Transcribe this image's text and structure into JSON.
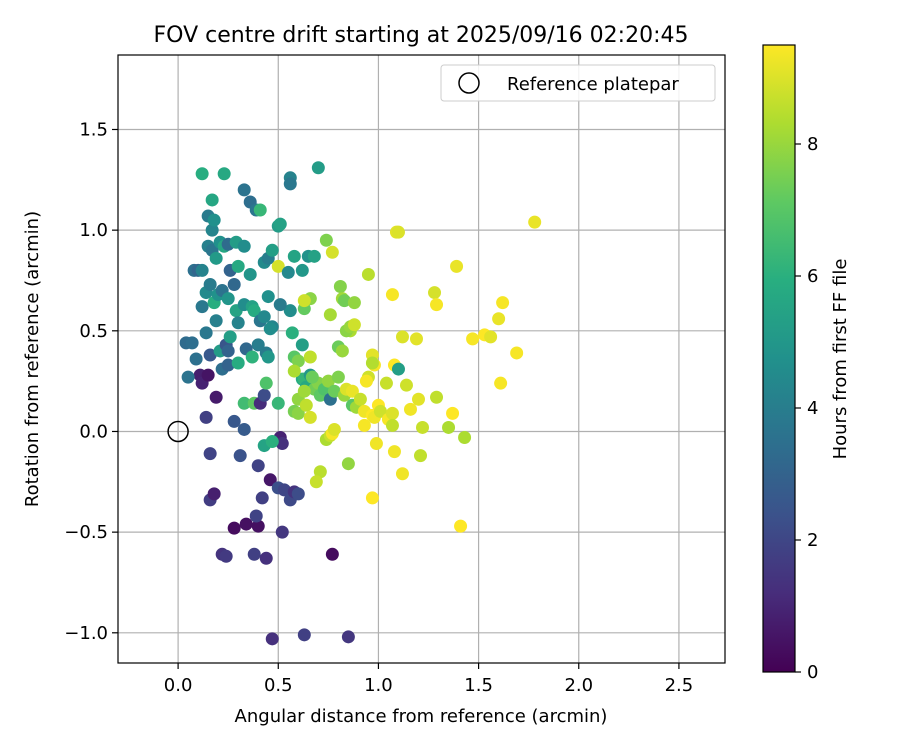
{
  "chart_data": {
    "type": "scatter",
    "title": "FOV centre drift starting at 2025/09/16 02:20:45",
    "xlabel": "Angular distance from reference (arcmin)",
    "ylabel": "Rotation from reference (arcmin)",
    "xlim": [
      -0.3,
      2.73
    ],
    "ylim": [
      -1.15,
      1.87
    ],
    "x_ticks": [
      0.0,
      0.5,
      1.0,
      1.5,
      2.0,
      2.5
    ],
    "x_tick_labels": [
      "0.0",
      "0.5",
      "1.0",
      "1.5",
      "2.0",
      "2.5"
    ],
    "y_ticks": [
      -1.0,
      -0.5,
      0.0,
      0.5,
      1.0,
      1.5
    ],
    "y_tick_labels": [
      "−1.0",
      "−0.5",
      "0.0",
      "0.5",
      "1.0",
      "1.5"
    ],
    "grid": true,
    "legend": {
      "placement": "top-right",
      "entries": [
        "Reference platepar"
      ]
    },
    "reference_point": {
      "x": 0.0,
      "y": 0.0,
      "label": "Reference platepar"
    },
    "colorbar": {
      "label": "Hours from first FF file",
      "min": 0,
      "max": 9.5,
      "ticks": [
        0,
        2,
        4,
        6,
        8
      ],
      "tick_labels": [
        "0",
        "2",
        "4",
        "6",
        "8"
      ]
    },
    "points": [
      [
        0.11,
        0.28,
        0.8
      ],
      [
        0.12,
        0.24,
        0.9
      ],
      [
        0.15,
        0.28,
        0.5
      ],
      [
        0.19,
        0.17,
        0.7
      ],
      [
        0.14,
        0.07,
        1.8
      ],
      [
        0.16,
        -0.11,
        1.9
      ],
      [
        0.16,
        -0.34,
        1.7
      ],
      [
        0.18,
        -0.31,
        0.8
      ],
      [
        0.22,
        -0.61,
        1.4
      ],
      [
        0.24,
        -0.62,
        1.6
      ],
      [
        0.28,
        -0.48,
        0.3
      ],
      [
        0.34,
        -0.46,
        0.4
      ],
      [
        0.38,
        -0.61,
        1.8
      ],
      [
        0.4,
        -0.47,
        0.4
      ],
      [
        0.44,
        -0.63,
        1.3
      ],
      [
        0.39,
        -0.42,
        1.9
      ],
      [
        0.4,
        -0.17,
        1.9
      ],
      [
        0.42,
        -0.33,
        1.8
      ],
      [
        0.46,
        -0.24,
        0.6
      ],
      [
        0.5,
        -0.28,
        2.3
      ],
      [
        0.52,
        -0.5,
        1.5
      ],
      [
        0.53,
        -0.29,
        2.0
      ],
      [
        0.56,
        -0.34,
        2.1
      ],
      [
        0.58,
        -0.3,
        1.4
      ],
      [
        0.6,
        -0.31,
        2.2
      ],
      [
        0.63,
        -1.01,
        1.8
      ],
      [
        0.85,
        -1.02,
        1.5
      ],
      [
        0.47,
        -1.03,
        1.3
      ],
      [
        0.77,
        -0.61,
        0.3
      ],
      [
        0.31,
        -0.12,
        2.4
      ],
      [
        0.28,
        0.05,
        2.6
      ],
      [
        0.33,
        0.01,
        2.7
      ],
      [
        0.51,
        -0.03,
        0.9
      ],
      [
        0.52,
        -0.06,
        1.3
      ],
      [
        0.43,
        -0.07,
        5.5
      ],
      [
        0.47,
        -0.05,
        6.0
      ],
      [
        0.22,
        0.31,
        3.4
      ],
      [
        0.25,
        0.33,
        3.0
      ],
      [
        0.3,
        0.34,
        5.8
      ],
      [
        0.33,
        0.14,
        6.5
      ],
      [
        0.38,
        0.14,
        7.1
      ],
      [
        0.41,
        0.14,
        1.2
      ],
      [
        0.43,
        0.18,
        2.2
      ],
      [
        0.44,
        0.24,
        6.8
      ],
      [
        0.5,
        0.14,
        6.3
      ],
      [
        0.05,
        0.27,
        3.6
      ],
      [
        0.09,
        0.36,
        3.5
      ],
      [
        0.04,
        0.44,
        3.3
      ],
      [
        0.07,
        0.44,
        3.4
      ],
      [
        0.14,
        0.49,
        3.8
      ],
      [
        0.16,
        0.38,
        2.6
      ],
      [
        0.19,
        0.55,
        4.1
      ],
      [
        0.21,
        0.4,
        5.2
      ],
      [
        0.24,
        0.43,
        2.5
      ],
      [
        0.25,
        0.4,
        3.0
      ],
      [
        0.26,
        0.47,
        5.3
      ],
      [
        0.29,
        0.6,
        5.5
      ],
      [
        0.3,
        0.54,
        4.2
      ],
      [
        0.33,
        0.63,
        4.6
      ],
      [
        0.34,
        0.41,
        3.2
      ],
      [
        0.37,
        0.37,
        6.1
      ],
      [
        0.37,
        0.62,
        5.4
      ],
      [
        0.38,
        0.6,
        5.8
      ],
      [
        0.4,
        0.43,
        4.0
      ],
      [
        0.41,
        0.55,
        3.7
      ],
      [
        0.43,
        0.57,
        4.4
      ],
      [
        0.44,
        0.39,
        3.9
      ],
      [
        0.45,
        0.37,
        5.0
      ],
      [
        0.47,
        0.52,
        4.3
      ],
      [
        0.45,
        0.67,
        4.7
      ],
      [
        0.12,
        0.62,
        3.8
      ],
      [
        0.14,
        0.69,
        4.5
      ],
      [
        0.16,
        0.73,
        3.9
      ],
      [
        0.18,
        0.64,
        5.9
      ],
      [
        0.2,
        0.68,
        4.8
      ],
      [
        0.22,
        0.7,
        3.6
      ],
      [
        0.25,
        0.66,
        4.9
      ],
      [
        0.28,
        0.73,
        3.2
      ],
      [
        0.08,
        0.8,
        3.5
      ],
      [
        0.1,
        0.8,
        3.1
      ],
      [
        0.12,
        0.8,
        4.2
      ],
      [
        0.15,
        0.92,
        4.1
      ],
      [
        0.17,
        0.9,
        3.7
      ],
      [
        0.19,
        0.86,
        5.1
      ],
      [
        0.21,
        0.94,
        4.7
      ],
      [
        0.23,
        0.92,
        5.6
      ],
      [
        0.25,
        0.93,
        3.3
      ],
      [
        0.26,
        0.8,
        3.0
      ],
      [
        0.29,
        0.94,
        5.2
      ],
      [
        0.3,
        0.82,
        5.7
      ],
      [
        0.33,
        0.92,
        4.6
      ],
      [
        0.36,
        0.78,
        4.9
      ],
      [
        0.43,
        0.84,
        4.5
      ],
      [
        0.45,
        0.86,
        4.0
      ],
      [
        0.47,
        0.9,
        5.3
      ],
      [
        0.5,
        0.82,
        8.9
      ],
      [
        0.55,
        0.79,
        4.4
      ],
      [
        0.58,
        0.87,
        5.5
      ],
      [
        0.62,
        0.8,
        5.0
      ],
      [
        0.65,
        0.87,
        4.8
      ],
      [
        0.68,
        0.87,
        5.4
      ],
      [
        0.56,
        0.6,
        4.6
      ],
      [
        0.57,
        0.49,
        6.0
      ],
      [
        0.15,
        1.07,
        3.9
      ],
      [
        0.17,
        1.0,
        4.3
      ],
      [
        0.18,
        1.05,
        4.7
      ],
      [
        0.17,
        1.15,
        5.6
      ],
      [
        0.12,
        1.28,
        5.9
      ],
      [
        0.23,
        1.28,
        5.7
      ],
      [
        0.33,
        1.2,
        3.6
      ],
      [
        0.36,
        1.14,
        3.4
      ],
      [
        0.39,
        1.1,
        3.7
      ],
      [
        0.41,
        1.1,
        6.3
      ],
      [
        0.5,
        1.02,
        5.2
      ],
      [
        0.51,
        1.03,
        5.4
      ],
      [
        0.56,
        1.26,
        4.2
      ],
      [
        0.56,
        1.23,
        3.8
      ],
      [
        0.7,
        1.31,
        5.2
      ],
      [
        0.46,
        0.51,
        4.6
      ],
      [
        0.51,
        0.63,
        3.9
      ],
      [
        0.58,
        0.37,
        7.0
      ],
      [
        0.6,
        0.35,
        7.6
      ],
      [
        0.62,
        0.43,
        5.3
      ],
      [
        0.63,
        0.61,
        7.2
      ],
      [
        0.66,
        0.66,
        7.8
      ],
      [
        0.63,
        0.65,
        8.8
      ],
      [
        0.62,
        0.26,
        5.8
      ],
      [
        0.63,
        0.26,
        6.2
      ],
      [
        0.64,
        0.22,
        5.7
      ],
      [
        0.66,
        0.28,
        5.0
      ],
      [
        0.68,
        0.21,
        7.4
      ],
      [
        0.7,
        0.24,
        7.7
      ],
      [
        0.71,
        0.18,
        7.1
      ],
      [
        0.73,
        0.21,
        6.8
      ],
      [
        0.75,
        0.25,
        7.9
      ],
      [
        0.76,
        0.16,
        3.5
      ],
      [
        0.78,
        0.2,
        7.3
      ],
      [
        0.8,
        0.27,
        7.6
      ],
      [
        0.83,
        0.18,
        8.0
      ],
      [
        0.84,
        0.21,
        9.0
      ],
      [
        0.87,
        0.2,
        9.2
      ],
      [
        0.87,
        0.13,
        7.0
      ],
      [
        0.89,
        0.12,
        8.1
      ],
      [
        0.91,
        0.16,
        8.7
      ],
      [
        0.93,
        0.1,
        9.3
      ],
      [
        0.58,
        0.3,
        8.3
      ],
      [
        0.6,
        0.16,
        7.9
      ],
      [
        0.63,
        0.2,
        8.1
      ],
      [
        0.58,
        0.1,
        7.5
      ],
      [
        0.6,
        0.09,
        7.8
      ],
      [
        0.64,
        0.13,
        8.6
      ],
      [
        0.66,
        0.07,
        8.9
      ],
      [
        0.66,
        0.37,
        8.6
      ],
      [
        0.67,
        0.27,
        7.3
      ],
      [
        0.71,
        -0.2,
        8.5
      ],
      [
        0.69,
        -0.25,
        8.7
      ],
      [
        0.74,
        -0.04,
        8.3
      ],
      [
        0.76,
        -0.02,
        8.7
      ],
      [
        0.77,
        -0.01,
        9.4
      ],
      [
        0.78,
        0.01,
        9.0
      ],
      [
        0.85,
        -0.16,
        7.9
      ],
      [
        0.74,
        0.95,
        7.6
      ],
      [
        0.77,
        0.89,
        8.9
      ],
      [
        0.81,
        0.72,
        7.7
      ],
      [
        0.82,
        0.66,
        8.1
      ],
      [
        0.83,
        0.65,
        7.4
      ],
      [
        0.86,
        0.5,
        8.3
      ],
      [
        0.84,
        0.5,
        7.8
      ],
      [
        0.8,
        0.42,
        7.3
      ],
      [
        0.82,
        0.4,
        8.0
      ],
      [
        0.86,
        0.52,
        8.0
      ],
      [
        0.88,
        0.53,
        8.8
      ],
      [
        0.76,
        0.58,
        8.2
      ],
      [
        0.88,
        0.64,
        7.9
      ],
      [
        0.95,
        0.78,
        8.5
      ],
      [
        0.97,
        0.38,
        9.1
      ],
      [
        0.98,
        0.33,
        9.4
      ],
      [
        0.95,
        0.27,
        8.8
      ],
      [
        0.94,
        0.25,
        9.4
      ],
      [
        0.97,
        0.08,
        9.5
      ],
      [
        1.0,
        0.13,
        9.5
      ],
      [
        0.98,
        0.07,
        9.3
      ],
      [
        1.01,
        0.1,
        8.8
      ],
      [
        1.04,
        0.24,
        8.7
      ],
      [
        1.05,
        0.06,
        9.4
      ],
      [
        1.07,
        0.09,
        9.0
      ],
      [
        1.08,
        0.33,
        9.5
      ],
      [
        1.1,
        0.31,
        5.3
      ],
      [
        1.09,
        0.99,
        9.1
      ],
      [
        1.07,
        0.68,
        9.4
      ],
      [
        1.12,
        0.47,
        9.0
      ],
      [
        1.14,
        0.23,
        8.8
      ],
      [
        1.16,
        0.11,
        9.3
      ],
      [
        1.19,
        0.46,
        9.1
      ],
      [
        1.2,
        0.16,
        9.1
      ],
      [
        1.22,
        0.02,
        8.7
      ],
      [
        1.21,
        -0.12,
        8.6
      ],
      [
        1.12,
        -0.21,
        9.3
      ],
      [
        1.08,
        -0.1,
        9.3
      ],
      [
        1.07,
        0.03,
        8.6
      ],
      [
        0.99,
        -0.06,
        9.3
      ],
      [
        0.97,
        -0.33,
        9.5
      ],
      [
        0.93,
        0.03,
        9.4
      ],
      [
        0.97,
        0.34,
        8.4
      ],
      [
        1.1,
        0.99,
        9.0
      ],
      [
        1.28,
        0.69,
        8.9
      ],
      [
        1.29,
        0.63,
        9.4
      ],
      [
        1.29,
        0.17,
        8.6
      ],
      [
        1.35,
        0.02,
        8.3
      ],
      [
        1.37,
        0.09,
        9.5
      ],
      [
        1.39,
        0.82,
        9.2
      ],
      [
        1.41,
        -0.47,
        9.5
      ],
      [
        1.43,
        -0.03,
        8.3
      ],
      [
        1.47,
        0.46,
        9.4
      ],
      [
        1.53,
        0.48,
        9.5
      ],
      [
        1.56,
        0.47,
        9.1
      ],
      [
        1.6,
        0.56,
        9.2
      ],
      [
        1.62,
        0.64,
        9.4
      ],
      [
        1.61,
        0.24,
        9.4
      ],
      [
        1.69,
        0.39,
        9.4
      ],
      [
        1.78,
        1.04,
        9.2
      ]
    ]
  }
}
